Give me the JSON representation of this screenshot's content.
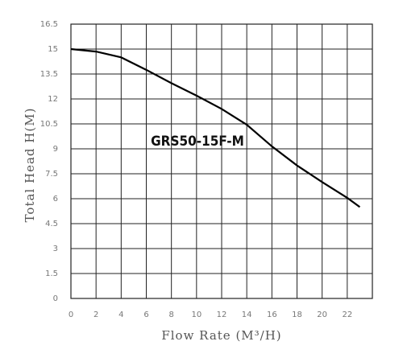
{
  "chart_data": {
    "type": "line",
    "annotation": "GRS50-15F-M",
    "xlabel": "Flow Rate (M³/H)",
    "ylabel": "Total Head H(M)",
    "x": [
      0,
      2,
      4,
      6,
      8,
      10,
      12,
      14,
      16,
      18,
      20,
      22,
      23
    ],
    "series": [
      {
        "color": "#000000",
        "values": [
          15,
          14.85,
          14.5,
          13.75,
          12.95,
          12.2,
          11.4,
          10.45,
          9.15,
          8.0,
          7.0,
          6.05,
          5.5
        ]
      }
    ],
    "xlim": [
      0,
      24
    ],
    "xticks": [
      0,
      2,
      4,
      6,
      8,
      10,
      12,
      14,
      16,
      18,
      20,
      22
    ],
    "ylim": [
      0,
      16.5
    ],
    "yticks": [
      0,
      1.5,
      3,
      4.5,
      6,
      7.5,
      9,
      10.5,
      12,
      13.5,
      15,
      16.5
    ],
    "grid": true
  }
}
